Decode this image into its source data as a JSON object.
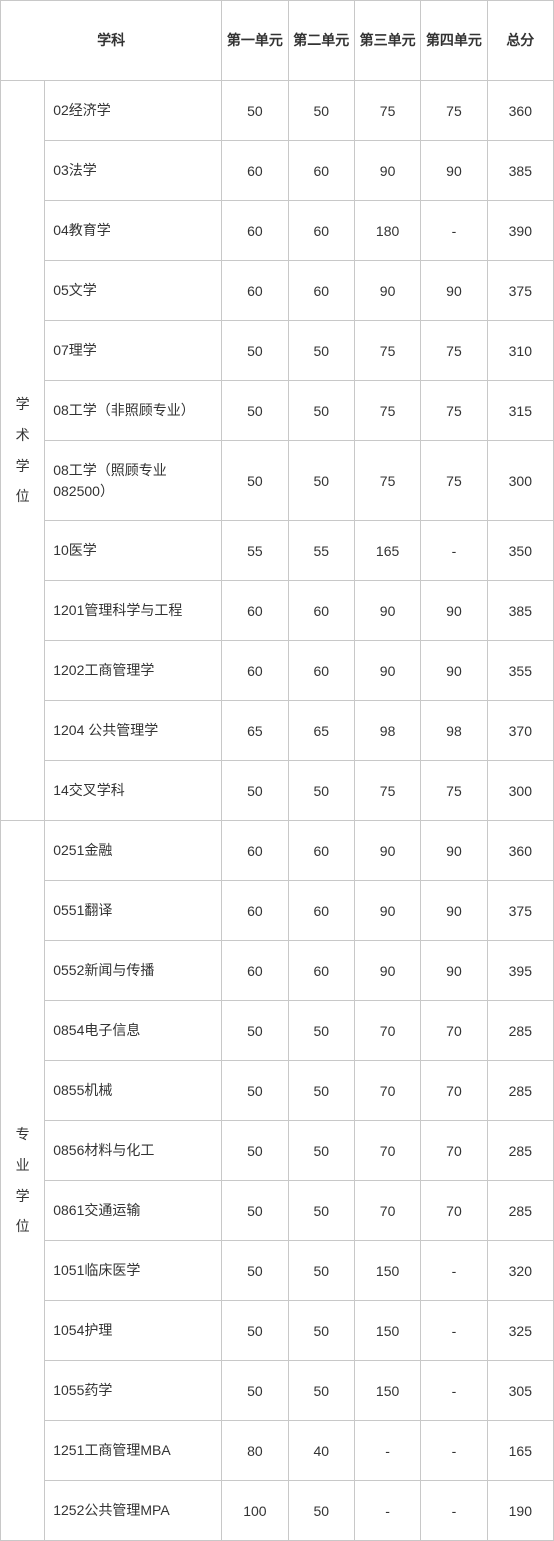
{
  "columns": {
    "subject": "学科",
    "unit1": "第一单元",
    "unit2": "第二单元",
    "unit3": "第三单元",
    "unit4": "第四单元",
    "total": "总分"
  },
  "groups": [
    {
      "category": "学术学位",
      "rows": [
        {
          "subject": "02经济学",
          "u1": "50",
          "u2": "50",
          "u3": "75",
          "u4": "75",
          "total": "360"
        },
        {
          "subject": "03法学",
          "u1": "60",
          "u2": "60",
          "u3": "90",
          "u4": "90",
          "total": "385"
        },
        {
          "subject": "04教育学",
          "u1": "60",
          "u2": "60",
          "u3": "180",
          "u4": "-",
          "total": "390"
        },
        {
          "subject": "05文学",
          "u1": "60",
          "u2": "60",
          "u3": "90",
          "u4": "90",
          "total": "375"
        },
        {
          "subject": "07理学",
          "u1": "50",
          "u2": "50",
          "u3": "75",
          "u4": "75",
          "total": "310"
        },
        {
          "subject": "08工学（非照顾专业）",
          "u1": "50",
          "u2": "50",
          "u3": "75",
          "u4": "75",
          "total": "315"
        },
        {
          "subject": "08工学（照顾专业082500）",
          "u1": "50",
          "u2": "50",
          "u3": "75",
          "u4": "75",
          "total": "300",
          "tall": true
        },
        {
          "subject": "10医学",
          "u1": "55",
          "u2": "55",
          "u3": "165",
          "u4": "-",
          "total": "350"
        },
        {
          "subject": "1201管理科学与工程",
          "u1": "60",
          "u2": "60",
          "u3": "90",
          "u4": "90",
          "total": "385"
        },
        {
          "subject": "1202工商管理学",
          "u1": "60",
          "u2": "60",
          "u3": "90",
          "u4": "90",
          "total": "355"
        },
        {
          "subject": "1204 公共管理学",
          "u1": "65",
          "u2": "65",
          "u3": "98",
          "u4": "98",
          "total": "370"
        },
        {
          "subject": "14交叉学科",
          "u1": "50",
          "u2": "50",
          "u3": "75",
          "u4": "75",
          "total": "300"
        }
      ]
    },
    {
      "category": "专业学位",
      "rows": [
        {
          "subject": "0251金融",
          "u1": "60",
          "u2": "60",
          "u3": "90",
          "u4": "90",
          "total": "360"
        },
        {
          "subject": "0551翻译",
          "u1": "60",
          "u2": "60",
          "u3": "90",
          "u4": "90",
          "total": "375"
        },
        {
          "subject": "0552新闻与传播",
          "u1": "60",
          "u2": "60",
          "u3": "90",
          "u4": "90",
          "total": "395"
        },
        {
          "subject": "0854电子信息",
          "u1": "50",
          "u2": "50",
          "u3": "70",
          "u4": "70",
          "total": "285"
        },
        {
          "subject": "0855机械",
          "u1": "50",
          "u2": "50",
          "u3": "70",
          "u4": "70",
          "total": "285"
        },
        {
          "subject": "0856材料与化工",
          "u1": "50",
          "u2": "50",
          "u3": "70",
          "u4": "70",
          "total": "285"
        },
        {
          "subject": "0861交通运输",
          "u1": "50",
          "u2": "50",
          "u3": "70",
          "u4": "70",
          "total": "285"
        },
        {
          "subject": "1051临床医学",
          "u1": "50",
          "u2": "50",
          "u3": "150",
          "u4": "-",
          "total": "320"
        },
        {
          "subject": "1054护理",
          "u1": "50",
          "u2": "50",
          "u3": "150",
          "u4": "-",
          "total": "325"
        },
        {
          "subject": "1055药学",
          "u1": "50",
          "u2": "50",
          "u3": "150",
          "u4": "-",
          "total": "305"
        },
        {
          "subject": "1251工商管理MBA",
          "u1": "80",
          "u2": "40",
          "u3": "-",
          "u4": "-",
          "total": "165"
        },
        {
          "subject": "1252公共管理MPA",
          "u1": "100",
          "u2": "50",
          "u3": "-",
          "u4": "-",
          "total": "190"
        }
      ]
    }
  ]
}
